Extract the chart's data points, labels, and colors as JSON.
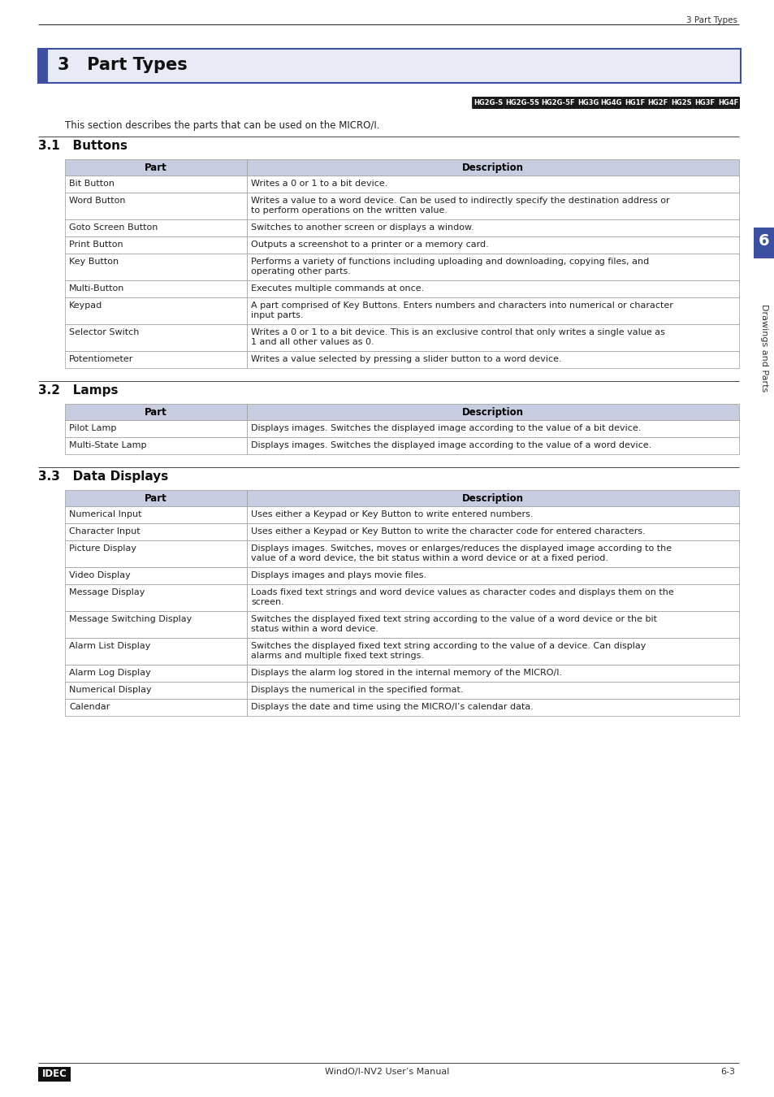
{
  "page_header_right": "3 Part Types",
  "chapter_title": "3   Part Types",
  "chapter_box_bg": "#e8eaf6",
  "chapter_box_border": "#3d4fa0",
  "chapter_left_bar": "#3d4fa0",
  "tags": [
    {
      "text": "HG2G-S"
    },
    {
      "text": "HG2G-5S"
    },
    {
      "text": "HG2G-5F"
    },
    {
      "text": "HG3G"
    },
    {
      "text": "HG4G"
    },
    {
      "text": "HG1F"
    },
    {
      "text": "HG2F"
    },
    {
      "text": "HG2S"
    },
    {
      "text": "HG3F"
    },
    {
      "text": "HG4F"
    }
  ],
  "tag_bg": "#1a1a1a",
  "tag_fg": "#ffffff",
  "intro_text": "This section describes the parts that can be used on the MICRO/I.",
  "section_31_title": "3.1   Buttons",
  "section_32_title": "3.2   Lamps",
  "section_33_title": "3.3   Data Displays",
  "table_header_bg": "#c8cce0",
  "table_row_bg": "#ffffff",
  "table_border": "#999999",
  "col_part_header": "Part",
  "col_desc_header": "Description",
  "buttons_rows": [
    [
      "Bit Button",
      "Writes a 0 or 1 to a bit device."
    ],
    [
      "Word Button",
      "Writes a value to a word device. Can be used to indirectly specify the destination address or\nto perform operations on the written value."
    ],
    [
      "Goto Screen Button",
      "Switches to another screen or displays a window."
    ],
    [
      "Print Button",
      "Outputs a screenshot to a printer or a memory card."
    ],
    [
      "Key Button",
      "Performs a variety of functions including uploading and downloading, copying files, and\noperating other parts."
    ],
    [
      "Multi-Button",
      "Executes multiple commands at once."
    ],
    [
      "Keypad",
      "A part comprised of Key Buttons. Enters numbers and characters into numerical or character\ninput parts."
    ],
    [
      "Selector Switch",
      "Writes a 0 or 1 to a bit device. This is an exclusive control that only writes a single value as\n1 and all other values as 0."
    ],
    [
      "Potentiometer",
      "Writes a value selected by pressing a slider button to a word device."
    ]
  ],
  "lamps_rows": [
    [
      "Pilot Lamp",
      "Displays images. Switches the displayed image according to the value of a bit device."
    ],
    [
      "Multi-State Lamp",
      "Displays images. Switches the displayed image according to the value of a word device."
    ]
  ],
  "data_displays_rows": [
    [
      "Numerical Input",
      "Uses either a Keypad or Key Button to write entered numbers."
    ],
    [
      "Character Input",
      "Uses either a Keypad or Key Button to write the character code for entered characters."
    ],
    [
      "Picture Display",
      "Displays images. Switches, moves or enlarges/reduces the displayed image according to the\nvalue of a word device, the bit status within a word device or at a fixed period."
    ],
    [
      "Video Display",
      "Displays images and plays movie files."
    ],
    [
      "Message Display",
      "Loads fixed text strings and word device values as character codes and displays them on the\nscreen."
    ],
    [
      "Message Switching Display",
      "Switches the displayed fixed text string according to the value of a word device or the bit\nstatus within a word device."
    ],
    [
      "Alarm List Display",
      "Switches the displayed fixed text string according to the value of a device. Can display\nalarms and multiple fixed text strings."
    ],
    [
      "Alarm Log Display",
      "Displays the alarm log stored in the internal memory of the MICRO/I."
    ],
    [
      "Numerical Display",
      "Displays the numerical in the specified format."
    ],
    [
      "Calendar",
      "Displays the date and time using the MICRO/I’s calendar data."
    ]
  ],
  "footer_left": "IDEC",
  "footer_center": "WindO/I-NV2 User’s Manual",
  "footer_right": "6-3",
  "sidebar_text": "Drawings and Parts",
  "sidebar_number": "6",
  "sidebar_bg": "#3d4fa0",
  "sidebar_fg": "#ffffff"
}
